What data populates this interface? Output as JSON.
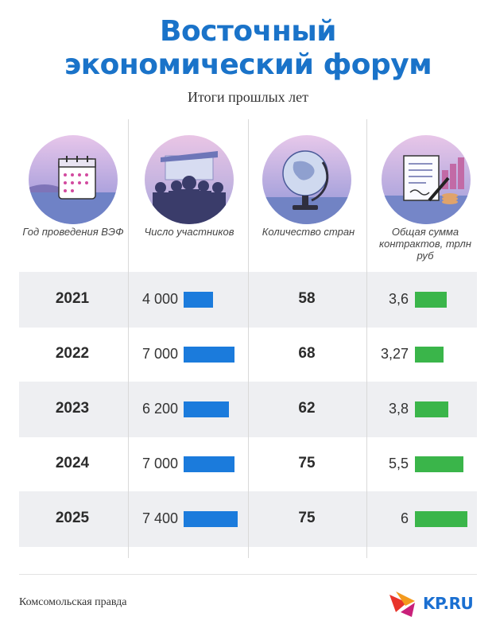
{
  "header": {
    "title_line1": "Восточный",
    "title_line2": "экономический форум",
    "subtitle": "Итоги прошлых лет"
  },
  "columns": [
    {
      "label": "Год проведения ВЭФ",
      "icon": "calendar-icon"
    },
    {
      "label": "Число участников",
      "icon": "crowd-icon"
    },
    {
      "label": "Количество стран",
      "icon": "globe-icon"
    },
    {
      "label": "Общая сумма контрактов, трлн руб",
      "icon": "contract-icon"
    }
  ],
  "chart_data": {
    "type": "table",
    "columns": [
      "Год проведения ВЭФ",
      "Число участников",
      "Количество стран",
      "Общая сумма контрактов, трлн руб"
    ],
    "rows": [
      {
        "year": "2021",
        "participants": 4000,
        "participants_label": "4 000",
        "countries": "58",
        "contracts": 3.6,
        "contracts_label": "3,6"
      },
      {
        "year": "2022",
        "participants": 7000,
        "participants_label": "7 000",
        "countries": "68",
        "contracts": 3.27,
        "contracts_label": "3,27"
      },
      {
        "year": "2023",
        "participants": 6200,
        "participants_label": "6 200",
        "countries": "62",
        "contracts": 3.8,
        "contracts_label": "3,8"
      },
      {
        "year": "2024",
        "participants": 7000,
        "participants_label": "7 000",
        "countries": "75",
        "contracts": 5.5,
        "contracts_label": "5,5"
      },
      {
        "year": "2025",
        "participants": 7400,
        "participants_label": "7 400",
        "countries": "75",
        "contracts": 6,
        "contracts_label": "6"
      }
    ],
    "colors": {
      "participants_bar": "#1b7bdc",
      "contracts_bar": "#3ab54a",
      "row_band": "#eeeff2",
      "title": "#1a73c9"
    }
  },
  "footer": {
    "source": "Комсомольская правда",
    "logo_text": "KP.RU"
  }
}
